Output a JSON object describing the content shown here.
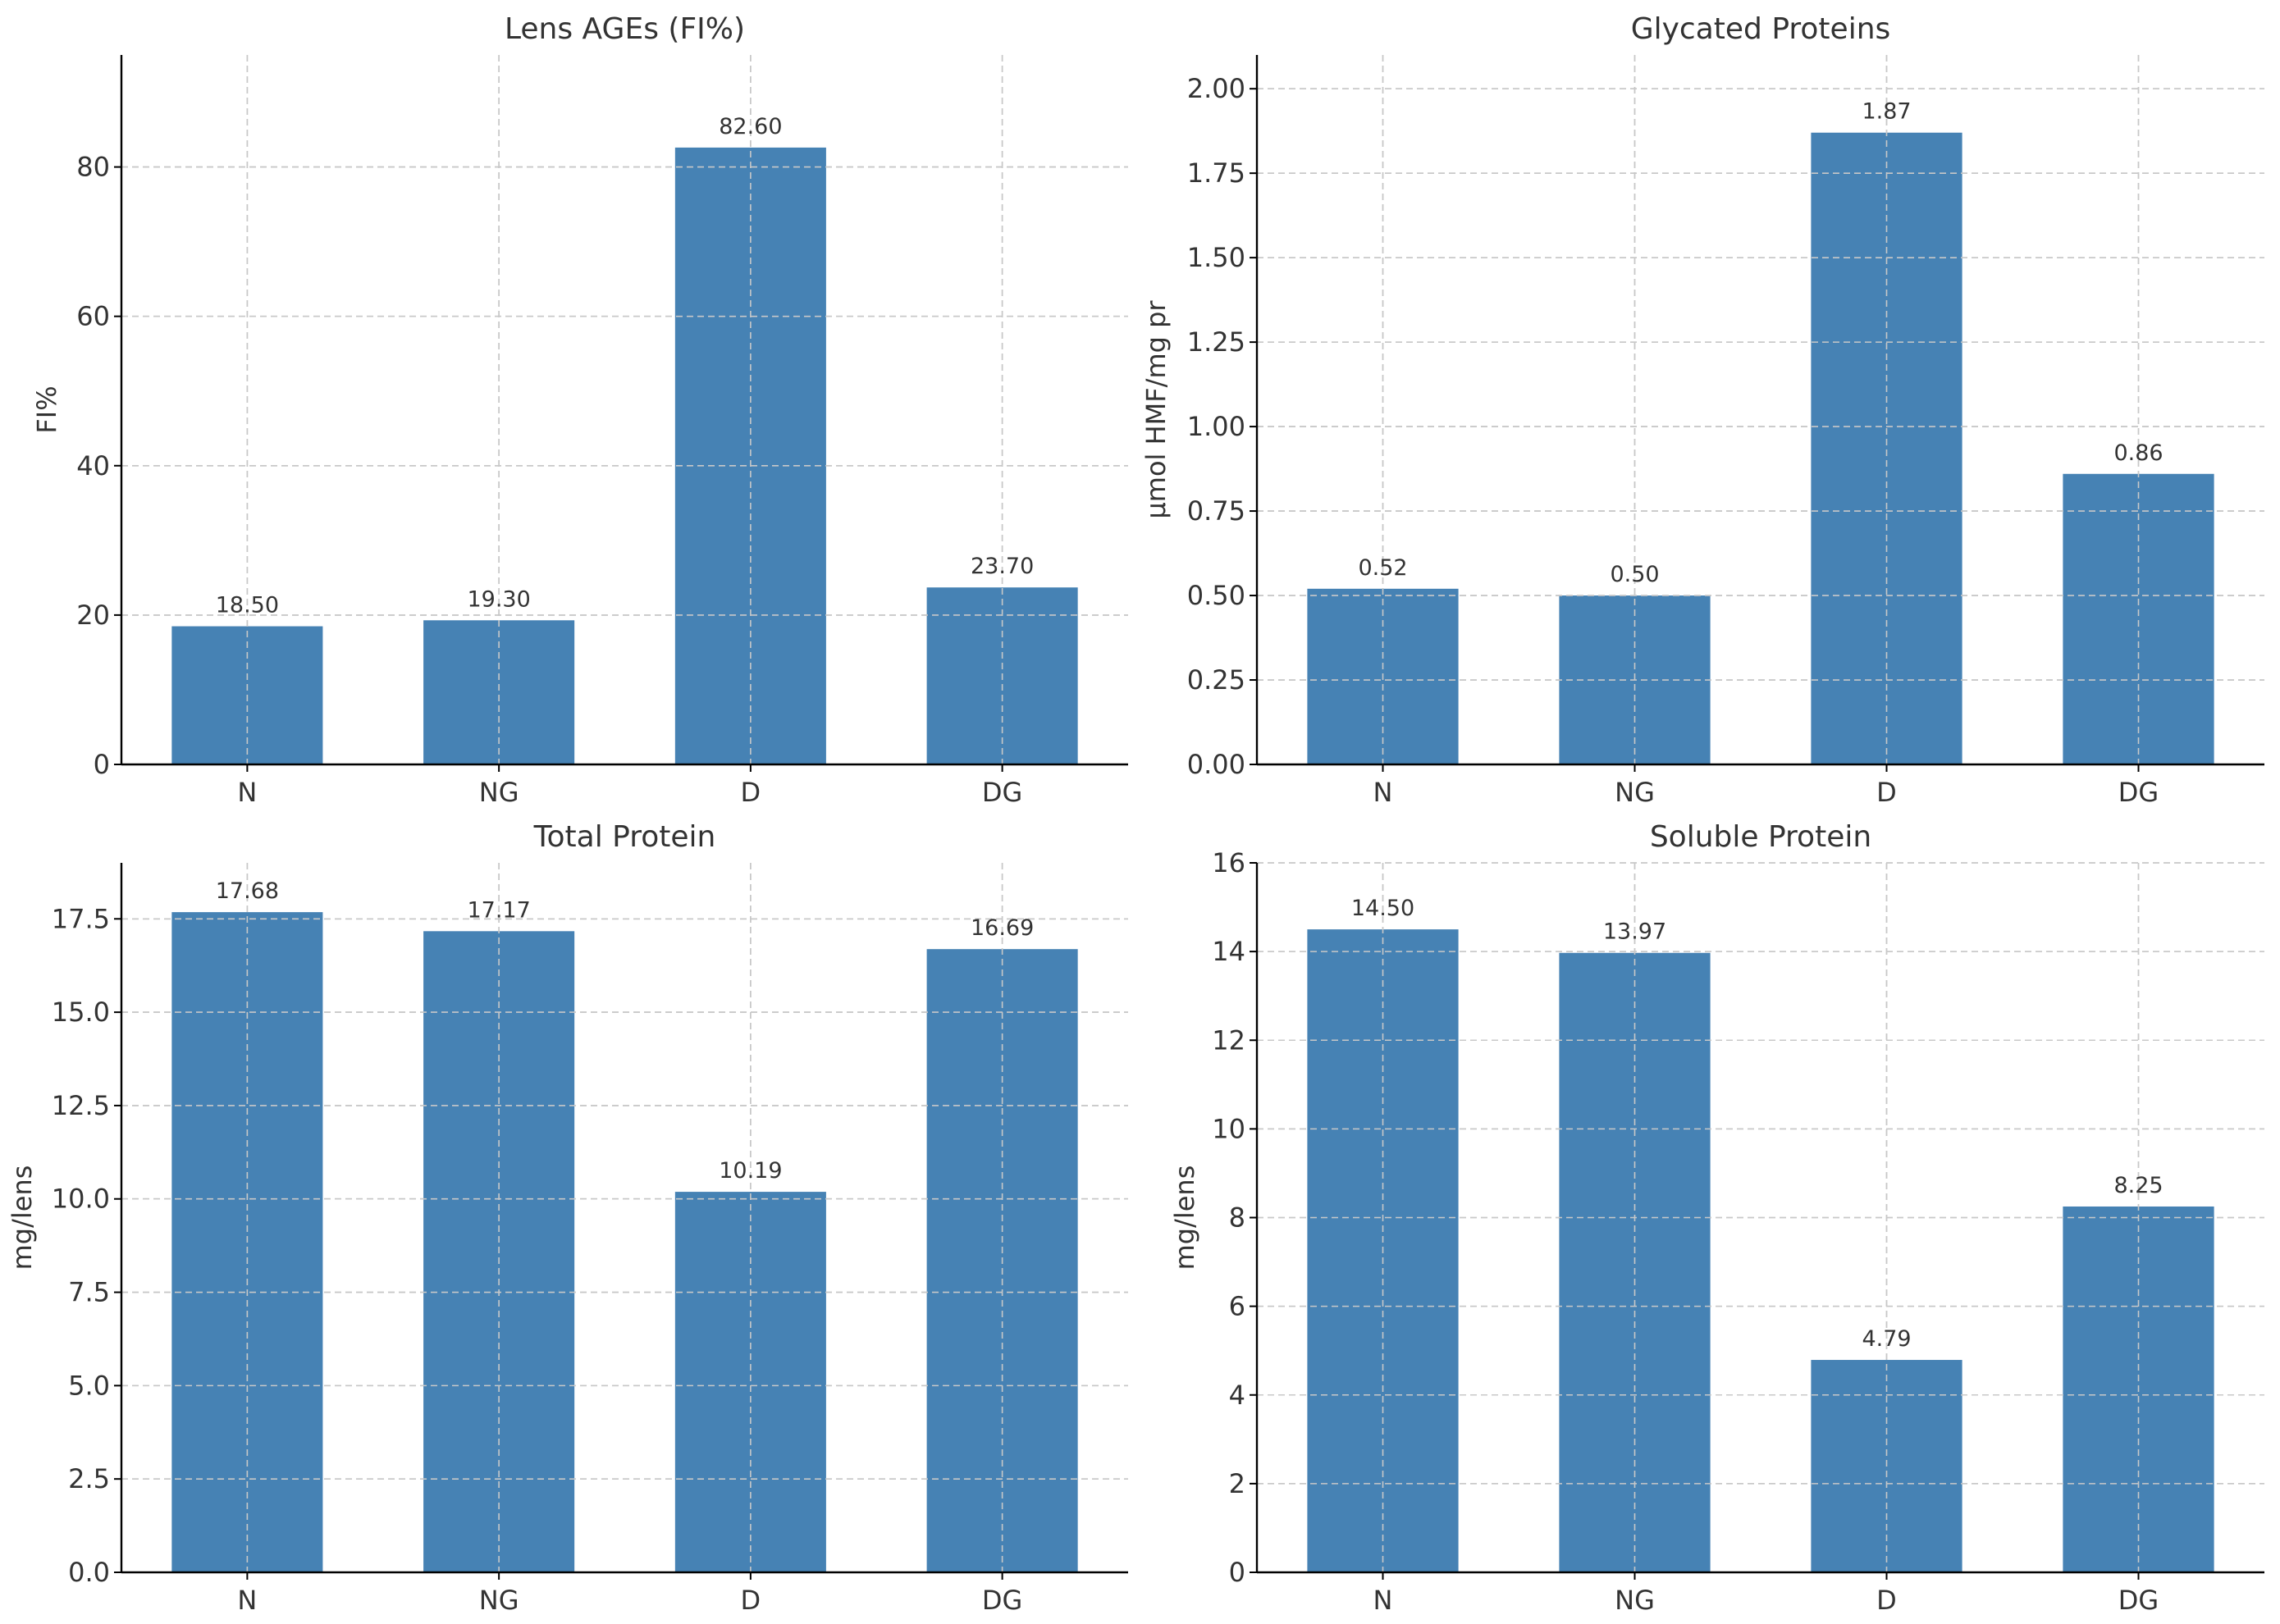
{
  "colors": {
    "bar": "#4682b4",
    "grid": "#c8c8c8",
    "axis": "#000000",
    "text": "#333333"
  },
  "chart_data": [
    {
      "type": "bar",
      "title": "Lens AGEs (FI%)",
      "xlabel": "",
      "ylabel": "FI%",
      "categories": [
        "N",
        "NG",
        "D",
        "DG"
      ],
      "values": [
        18.5,
        19.3,
        82.6,
        23.7
      ],
      "value_labels": [
        "18.50",
        "19.30",
        "82.60",
        "23.70"
      ],
      "ylim": [
        0,
        95
      ],
      "yticks": [
        0,
        20,
        40,
        60,
        80
      ],
      "ytick_labels": [
        "0",
        "20",
        "40",
        "60",
        "80"
      ],
      "grid": true
    },
    {
      "type": "bar",
      "title": "Glycated Proteins",
      "xlabel": "",
      "ylabel": "µmol HMF/mg pr",
      "categories": [
        "N",
        "NG",
        "D",
        "DG"
      ],
      "values": [
        0.52,
        0.5,
        1.87,
        0.86
      ],
      "value_labels": [
        "0.52",
        "0.50",
        "1.87",
        "0.86"
      ],
      "ylim": [
        0,
        2.1
      ],
      "yticks": [
        0,
        0.25,
        0.5,
        0.75,
        1.0,
        1.25,
        1.5,
        1.75,
        2.0
      ],
      "ytick_labels": [
        "0.00",
        "0.25",
        "0.50",
        "0.75",
        "1.00",
        "1.25",
        "1.50",
        "1.75",
        "2.00"
      ],
      "grid": true
    },
    {
      "type": "bar",
      "title": "Total Protein",
      "xlabel": "",
      "ylabel": "mg/lens",
      "categories": [
        "N",
        "NG",
        "D",
        "DG"
      ],
      "values": [
        17.68,
        17.17,
        10.19,
        16.69
      ],
      "value_labels": [
        "17.68",
        "17.17",
        "10.19",
        "16.69"
      ],
      "ylim": [
        0,
        19
      ],
      "yticks": [
        0,
        2.5,
        5,
        7.5,
        10,
        12.5,
        15,
        17.5
      ],
      "ytick_labels": [
        "0.0",
        "2.5",
        "5.0",
        "7.5",
        "10.0",
        "12.5",
        "15.0",
        "17.5"
      ],
      "grid": true
    },
    {
      "type": "bar",
      "title": "Soluble Protein",
      "xlabel": "",
      "ylabel": "mg/lens",
      "categories": [
        "N",
        "NG",
        "D",
        "DG"
      ],
      "values": [
        14.5,
        13.97,
        4.79,
        8.25
      ],
      "value_labels": [
        "14.50",
        "13.97",
        "4.79",
        "8.25"
      ],
      "ylim": [
        0,
        16
      ],
      "yticks": [
        0,
        2,
        4,
        6,
        8,
        10,
        12,
        14,
        16
      ],
      "ytick_labels": [
        "0",
        "2",
        "4",
        "6",
        "8",
        "10",
        "12",
        "14",
        "16"
      ],
      "grid": true
    }
  ]
}
